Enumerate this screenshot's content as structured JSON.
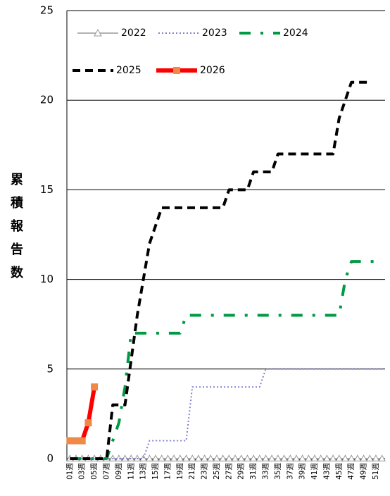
{
  "chart_data": {
    "type": "line",
    "y_label": "累積報告数",
    "categories": [
      "01週",
      null,
      "03週",
      null,
      "05週",
      null,
      "07週",
      null,
      "09週",
      null,
      "11週",
      null,
      "13週",
      null,
      "15週",
      null,
      "17週",
      null,
      "19週",
      null,
      "21週",
      null,
      "23週",
      null,
      "25週",
      null,
      "27週",
      null,
      "29週",
      null,
      "31週",
      null,
      "33週",
      null,
      "35週",
      null,
      "37週",
      null,
      "39週",
      null,
      "41週",
      null,
      "43週",
      null,
      "45週",
      null,
      "47週",
      null,
      "49週",
      null,
      "51週",
      null
    ],
    "ylim": [
      0,
      25
    ],
    "yticks": [
      0,
      5,
      10,
      15,
      20,
      25
    ],
    "grid": true,
    "series": [
      {
        "name": "2022",
        "color": "#999999",
        "marker": "triangle",
        "values": [
          0,
          0,
          0,
          0,
          0,
          0,
          0,
          0,
          0,
          0,
          0,
          0,
          0,
          0,
          0,
          0,
          0,
          0,
          0,
          0,
          0,
          0,
          0,
          0,
          0,
          0,
          0,
          0,
          0,
          0,
          0,
          0,
          0,
          0,
          0,
          0,
          0,
          0,
          0,
          0,
          0,
          0,
          0,
          0,
          0,
          0,
          0,
          0,
          0,
          0,
          0,
          0
        ]
      },
      {
        "name": "2023",
        "color": "#8080d0",
        "values": [
          0,
          0,
          0,
          0,
          0,
          0,
          0,
          0,
          0,
          0,
          0,
          0,
          0,
          1,
          1,
          1,
          1,
          1,
          1,
          1,
          4,
          4,
          4,
          4,
          4,
          4,
          4,
          4,
          4,
          4,
          4,
          4,
          5,
          5,
          5,
          5,
          5,
          5,
          5,
          5,
          5,
          5,
          5,
          5,
          5,
          5,
          5,
          5,
          5,
          5,
          5,
          5
        ]
      },
      {
        "name": "2024",
        "color": "#009944",
        "values": [
          0,
          0,
          0,
          0,
          0,
          0,
          0,
          1,
          2,
          4,
          7,
          7,
          7,
          7,
          7,
          7,
          7,
          7,
          7,
          8,
          8,
          8,
          8,
          8,
          8,
          8,
          8,
          8,
          8,
          8,
          8,
          8,
          8,
          8,
          8,
          8,
          8,
          8,
          8,
          8,
          8,
          8,
          8,
          8,
          8,
          10,
          11,
          11,
          11,
          11,
          11,
          null
        ]
      },
      {
        "name": "2025",
        "color": "#000000",
        "values": [
          0,
          0,
          0,
          0,
          0,
          0,
          0,
          3,
          3,
          3,
          5.5,
          8,
          10,
          12,
          13,
          14,
          14,
          14,
          14,
          14,
          14,
          14,
          14,
          14,
          14,
          14,
          15,
          15,
          15,
          15,
          16,
          16,
          16,
          16,
          17,
          17,
          17,
          17,
          17,
          17,
          17,
          17,
          17,
          17,
          19,
          20,
          21,
          21,
          21,
          21,
          null,
          null
        ]
      },
      {
        "name": "2026",
        "color": "#ff0000",
        "marker": "square",
        "marker_color": "#f08848",
        "values": [
          1,
          1,
          1,
          2,
          4,
          null,
          null,
          null,
          null,
          null,
          null,
          null,
          null,
          null,
          null,
          null,
          null,
          null,
          null,
          null,
          null,
          null,
          null,
          null,
          null,
          null,
          null,
          null,
          null,
          null,
          null,
          null,
          null,
          null,
          null,
          null,
          null,
          null,
          null,
          null,
          null,
          null,
          null,
          null,
          null,
          null,
          null,
          null,
          null,
          null,
          null,
          null
        ]
      }
    ]
  }
}
